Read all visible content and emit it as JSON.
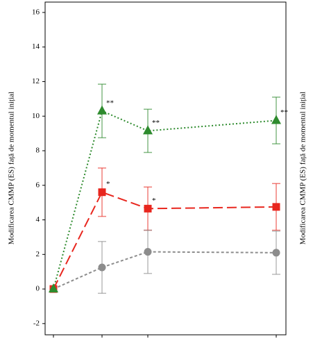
{
  "chart_data": {
    "type": "line",
    "y_label": "Modificarea CMMP (ES) față de momentul inițial",
    "categories": [
      null,
      null,
      null,
      null
    ],
    "ylim": [
      -2.65,
      16.6
    ],
    "yticks": [
      -2,
      0,
      2,
      4,
      6,
      8,
      10,
      12,
      14,
      16
    ],
    "series": [
      {
        "name": null,
        "color": "#2e8b2e",
        "marker": "triangle",
        "dash": "2,3",
        "values": [
          0,
          10.3,
          9.15,
          9.75
        ],
        "errors": [
          0,
          1.55,
          1.25,
          1.35
        ]
      },
      {
        "name": null,
        "color": "#e8261e",
        "marker": "square",
        "dash": "14,6",
        "values": [
          0,
          5.6,
          4.65,
          4.75
        ],
        "errors": [
          0,
          1.4,
          1.25,
          1.35
        ]
      },
      {
        "name": null,
        "color": "#8c8c8c",
        "marker": "circle",
        "dash": "4,3",
        "values": [
          0,
          1.25,
          2.15,
          2.1
        ],
        "errors": [
          0,
          1.5,
          1.25,
          1.25
        ]
      }
    ],
    "annotations": [
      {
        "text": "**",
        "series": 0,
        "index": 1
      },
      {
        "text": "**",
        "series": 0,
        "index": 2
      },
      {
        "text": "**",
        "series": 0,
        "index": 3
      },
      {
        "text": "*",
        "series": 1,
        "index": 1
      },
      {
        "text": "*",
        "series": 1,
        "index": 2
      }
    ]
  }
}
